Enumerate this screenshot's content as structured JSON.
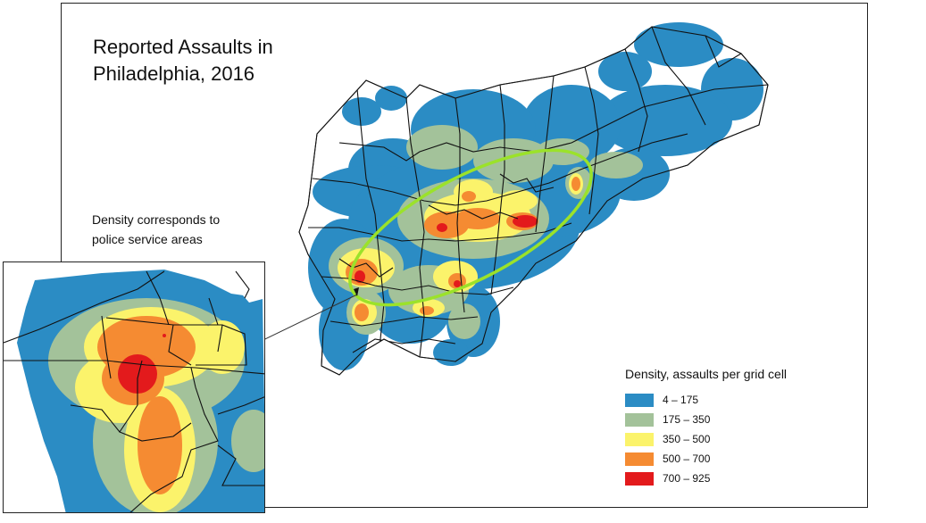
{
  "title_line1": "Reported Assaults in",
  "title_line2": "Philadelphia, 2016",
  "inset_note_line1": "Density corresponds to",
  "inset_note_line2": "police service areas",
  "legend": {
    "title": "Density, assaults per grid cell",
    "classes": [
      {
        "label": "4 – 175",
        "color": "#2b8cc4"
      },
      {
        "label": "175 – 350",
        "color": "#a3c29a"
      },
      {
        "label": "350 – 500",
        "color": "#fbf36b"
      },
      {
        "label": "500 – 700",
        "color": "#f58b32"
      },
      {
        "label": "700 – 925",
        "color": "#e31a1c"
      }
    ]
  },
  "highlight_color": "#9be22a"
}
